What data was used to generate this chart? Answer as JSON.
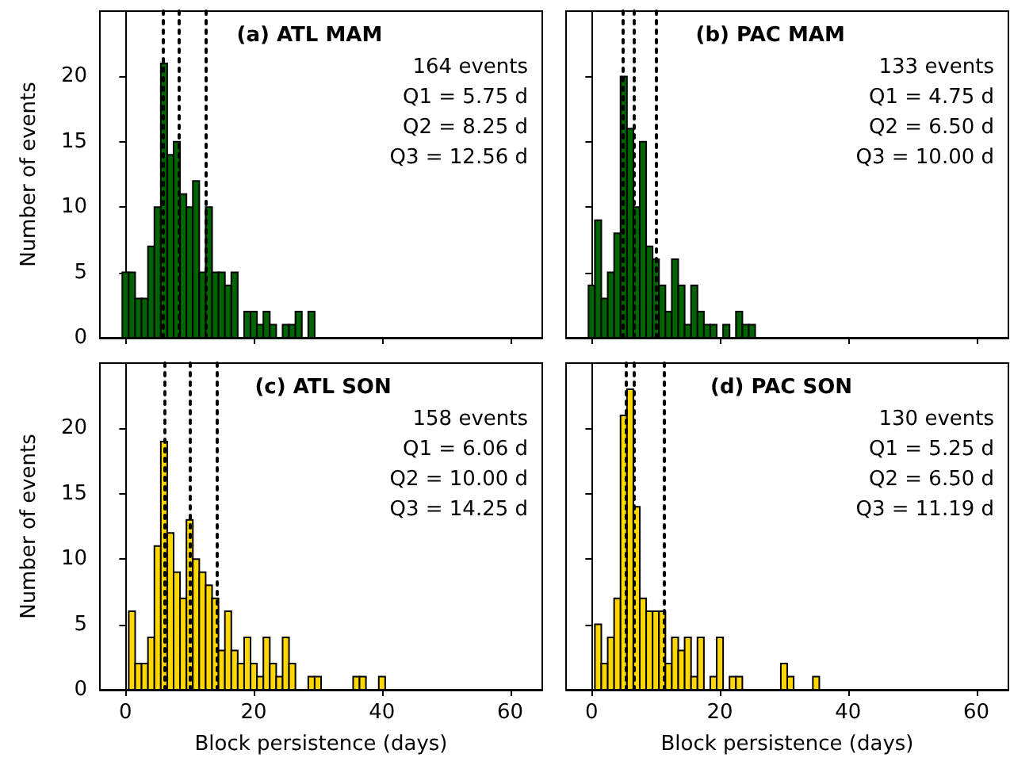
{
  "chart_data": [
    {
      "type": "histogram",
      "title": "(a) ATL MAM",
      "annotations": [
        "164 events",
        "Q1 = 5.75 d",
        "Q2 = 8.25 d",
        "Q3 = 12.56 d"
      ],
      "ylabel": "Number of events",
      "color": "#006400",
      "bins": [
        -0.5,
        0.5,
        1.5,
        2.5,
        3.5,
        4.5,
        5.5,
        6.5,
        7.5,
        8.5,
        9.5,
        10.5,
        11.5,
        12.5,
        13.5,
        14.5,
        15.5,
        16.5,
        17.5,
        18.5,
        19.5,
        20.5,
        21.5,
        22.5,
        23.5,
        24.5,
        25.5,
        26.5,
        27.5,
        28.5,
        29.5
      ],
      "values": [
        5,
        5,
        3,
        3,
        7,
        10,
        21,
        14,
        15,
        11,
        10,
        12,
        5,
        10,
        5,
        5,
        4,
        5,
        0,
        2,
        2,
        1,
        2,
        1,
        0,
        1,
        1,
        2,
        0,
        2
      ],
      "xlim": [
        -4,
        65
      ],
      "xticks": [
        0,
        20,
        40,
        60
      ],
      "ylim": [
        0,
        25
      ],
      "yticks": [
        0,
        5,
        10,
        15,
        20
      ],
      "tick_labels": "y",
      "ref_lines": [
        {
          "axis": "x",
          "value": 5.75,
          "color": "#000000",
          "line_style": "dotted"
        },
        {
          "axis": "x",
          "value": 8.25,
          "color": "#000000",
          "line_style": "dotted"
        },
        {
          "axis": "x",
          "value": 12.56,
          "color": "#000000",
          "line_style": "dotted"
        }
      ]
    },
    {
      "type": "histogram",
      "title": "(b) PAC MAM",
      "annotations": [
        "133 events",
        "Q1 = 4.75 d",
        "Q2 = 6.50 d",
        "Q3 = 10.00 d"
      ],
      "color": "#006400",
      "bins": [
        -0.5,
        0.5,
        1.5,
        2.5,
        3.5,
        4.5,
        5.5,
        6.5,
        7.5,
        8.5,
        9.5,
        10.5,
        11.5,
        12.5,
        13.5,
        14.5,
        15.5,
        16.5,
        17.5,
        18.5,
        19.5,
        20.5,
        21.5,
        22.5,
        23.5,
        24.5,
        25.5
      ],
      "values": [
        4,
        9,
        3,
        5,
        8,
        20,
        16,
        10,
        15,
        7,
        6,
        4,
        2,
        6,
        4,
        1,
        4,
        2,
        1,
        1,
        0,
        1,
        0,
        2,
        1,
        1
      ],
      "xlim": [
        -4,
        65
      ],
      "xticks": [
        0,
        20,
        40,
        60
      ],
      "ylim": [
        0,
        25
      ],
      "yticks": [
        0,
        5,
        10,
        15,
        20
      ],
      "tick_labels": false,
      "ref_lines": [
        {
          "axis": "x",
          "value": 4.75,
          "color": "#000000",
          "line_style": "dotted"
        },
        {
          "axis": "x",
          "value": 6.5,
          "color": "#000000",
          "line_style": "dotted"
        },
        {
          "axis": "x",
          "value": 10,
          "color": "#000000",
          "line_style": "dotted"
        }
      ]
    },
    {
      "type": "histogram",
      "title": "(c) ATL SON",
      "annotations": [
        "158 events",
        "Q1 = 6.06 d",
        "Q2 = 10.00 d",
        "Q3 = 14.25 d"
      ],
      "xlabel": "Block persistence (days)",
      "ylabel": "Number of events",
      "color": "#ffd700",
      "bins": [
        0.5,
        1.5,
        2.5,
        3.5,
        4.5,
        5.5,
        6.5,
        7.5,
        8.5,
        9.5,
        10.5,
        11.5,
        12.5,
        13.5,
        14.5,
        15.5,
        16.5,
        17.5,
        18.5,
        19.5,
        20.5,
        21.5,
        22.5,
        23.5,
        24.5,
        25.5,
        26.5,
        27.5,
        28.5,
        29.5,
        30.5,
        31.5,
        32.5,
        33.5,
        34.5,
        35.5,
        36.5,
        37.5,
        38.5,
        39.5,
        40.5
      ],
      "values": [
        6,
        2,
        2,
        4,
        11,
        19,
        12,
        9,
        7,
        13,
        10,
        9,
        8,
        7,
        3,
        6,
        3,
        2,
        4,
        2,
        1,
        4,
        2,
        1,
        4,
        2,
        0,
        0,
        1,
        1,
        0,
        0,
        0,
        0,
        0,
        1,
        1,
        0,
        0,
        1
      ],
      "xlim": [
        -4,
        65
      ],
      "xticks": [
        0,
        20,
        40,
        60
      ],
      "ylim": [
        0,
        25
      ],
      "yticks": [
        0,
        5,
        10,
        15,
        20
      ],
      "ref_lines": [
        {
          "axis": "x",
          "value": 6.06,
          "color": "#000000",
          "line_style": "dotted"
        },
        {
          "axis": "x",
          "value": 10,
          "color": "#000000",
          "line_style": "dotted"
        },
        {
          "axis": "x",
          "value": 14.25,
          "color": "#000000",
          "line_style": "dotted"
        }
      ]
    },
    {
      "type": "histogram",
      "title": "(d) PAC SON",
      "annotations": [
        "130 events",
        "Q1 = 5.25 d",
        "Q2 = 6.50 d",
        "Q3 = 11.19 d"
      ],
      "xlabel": "Block persistence (days)",
      "color": "#ffd700",
      "bins": [
        0.5,
        1.5,
        2.5,
        3.5,
        4.5,
        5.5,
        6.5,
        7.5,
        8.5,
        9.5,
        10.5,
        11.5,
        12.5,
        13.5,
        14.5,
        15.5,
        16.5,
        17.5,
        18.5,
        19.5,
        20.5,
        21.5,
        22.5,
        23.5,
        24.5,
        25.5,
        26.5,
        27.5,
        28.5,
        29.5,
        30.5,
        31.5,
        32.5,
        33.5,
        34.5,
        35.5
      ],
      "values": [
        5,
        2,
        4,
        7,
        21,
        23,
        14,
        7,
        6,
        6,
        6,
        2,
        4,
        3,
        4,
        1,
        4,
        0,
        1,
        4,
        0,
        1,
        1,
        0,
        0,
        0,
        0,
        0,
        0,
        2,
        1,
        0,
        0,
        0,
        1
      ],
      "xlim": [
        -4,
        65
      ],
      "xticks": [
        0,
        20,
        40,
        60
      ],
      "ylim": [
        0,
        25
      ],
      "yticks": [
        0,
        5,
        10,
        15,
        20
      ],
      "tick_labels": "x",
      "ref_lines": [
        {
          "axis": "x",
          "value": 5.25,
          "color": "#000000",
          "line_style": "dotted"
        },
        {
          "axis": "x",
          "value": 6.5,
          "color": "#000000",
          "line_style": "dotted"
        },
        {
          "axis": "x",
          "value": 11.19,
          "color": "#000000",
          "line_style": "dotted"
        }
      ]
    }
  ]
}
